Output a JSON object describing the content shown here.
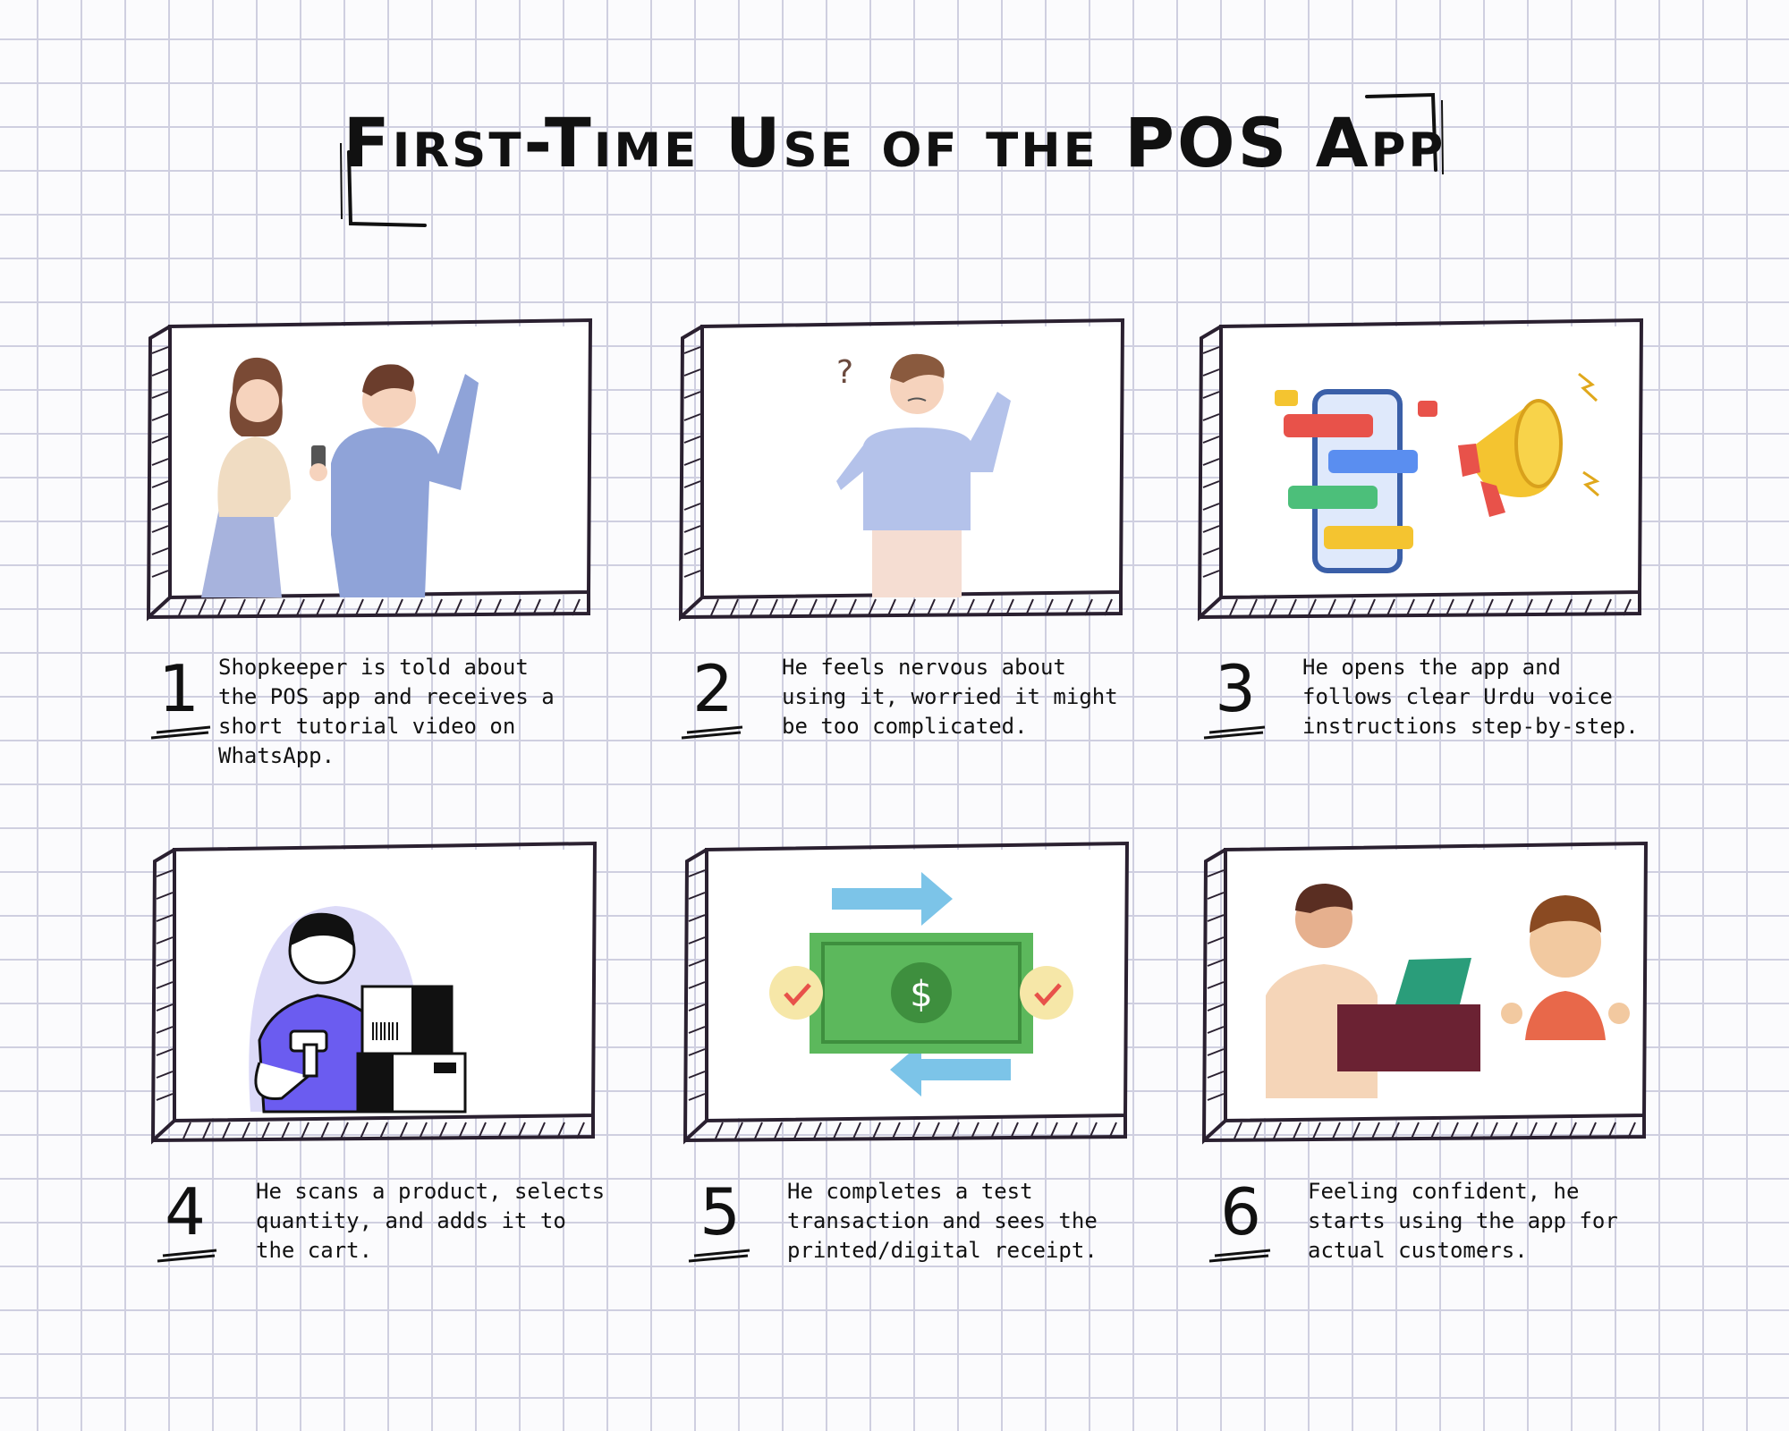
{
  "title": "First-Time Use of the POS App",
  "steps": [
    {
      "number": "1",
      "text": "Shopkeeper is told about the POS app and receives a short tutorial video on WhatsApp.",
      "illustration": "couple-with-phone"
    },
    {
      "number": "2",
      "text": "He feels nervous about using it, worried it might be too complicated.",
      "illustration": "confused-man"
    },
    {
      "number": "3",
      "text": "He opens the app and follows clear Urdu voice instructions step-by-step.",
      "illustration": "phone-chat-megaphone"
    },
    {
      "number": "4",
      "text": "He scans a product, selects quantity, and adds it to the cart.",
      "illustration": "barcode-scanner-boxes"
    },
    {
      "number": "5",
      "text": "He completes a test transaction and sees the printed/digital receipt.",
      "illustration": "money-transfer"
    },
    {
      "number": "6",
      "text": "Feeling confident, he starts using the app for actual customers.",
      "illustration": "shopkeeper-customer"
    }
  ],
  "colors": {
    "ink": "#111111",
    "grid": "#cfcfe0",
    "shirt_blue": "#8fa3d8",
    "money_green": "#5cb85c"
  }
}
